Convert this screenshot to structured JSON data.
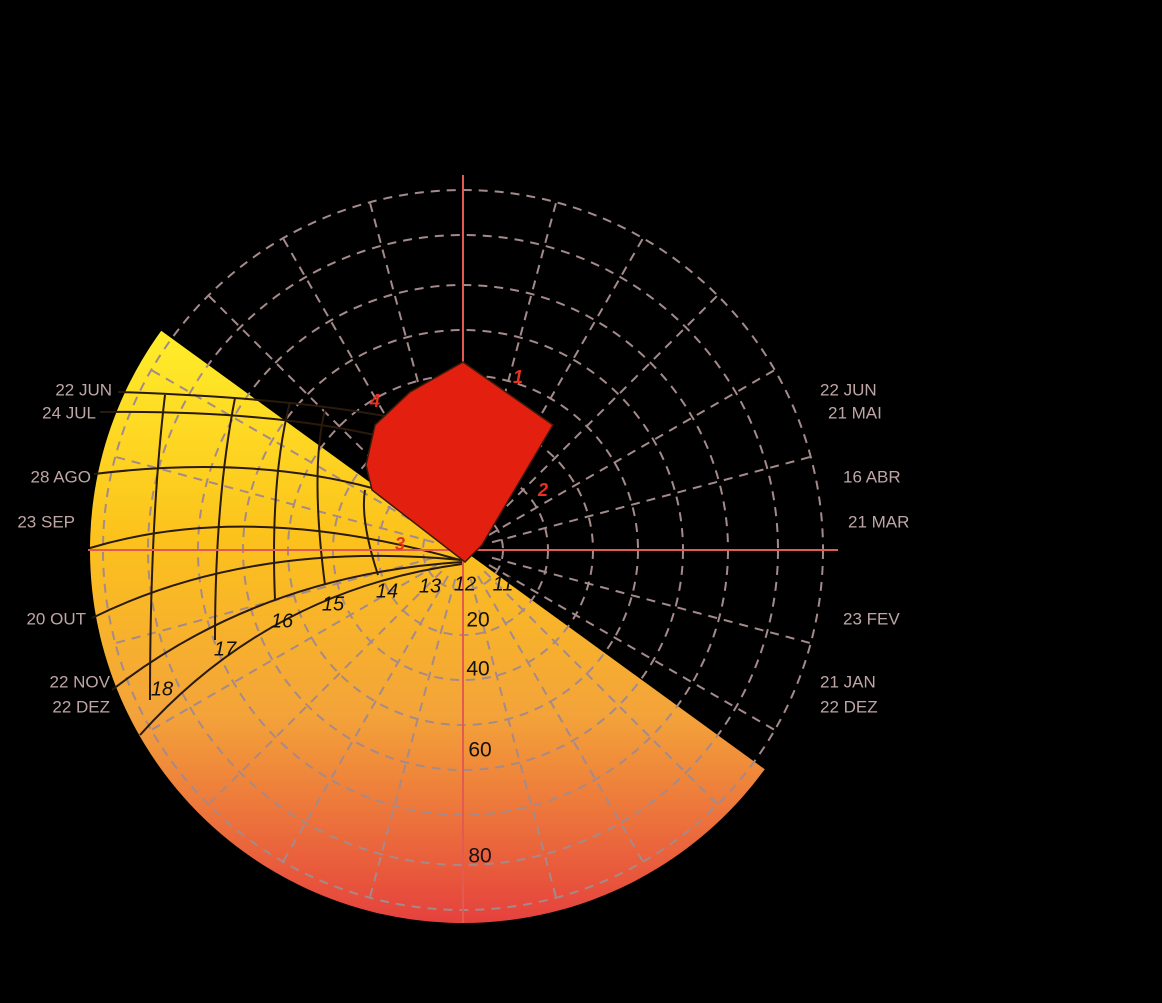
{
  "date_labels_left": [
    "22 JUN",
    "24 JUL",
    "28 AGO",
    "23 SEP",
    "20 OUT",
    "22 NOV",
    "22 DEZ"
  ],
  "date_labels_right": [
    "22 JUN",
    "21 MAI",
    "16 ABR",
    "21 MAR",
    "23 FEV",
    "21 JAN",
    "22 DEZ"
  ],
  "hour_labels": [
    "11",
    "12",
    "13",
    "14",
    "15",
    "16",
    "17",
    "18"
  ],
  "altitude_labels": [
    "20",
    "40",
    "60",
    "80"
  ],
  "mask_vertex_labels": [
    "1",
    "2",
    "3",
    "4"
  ]
}
